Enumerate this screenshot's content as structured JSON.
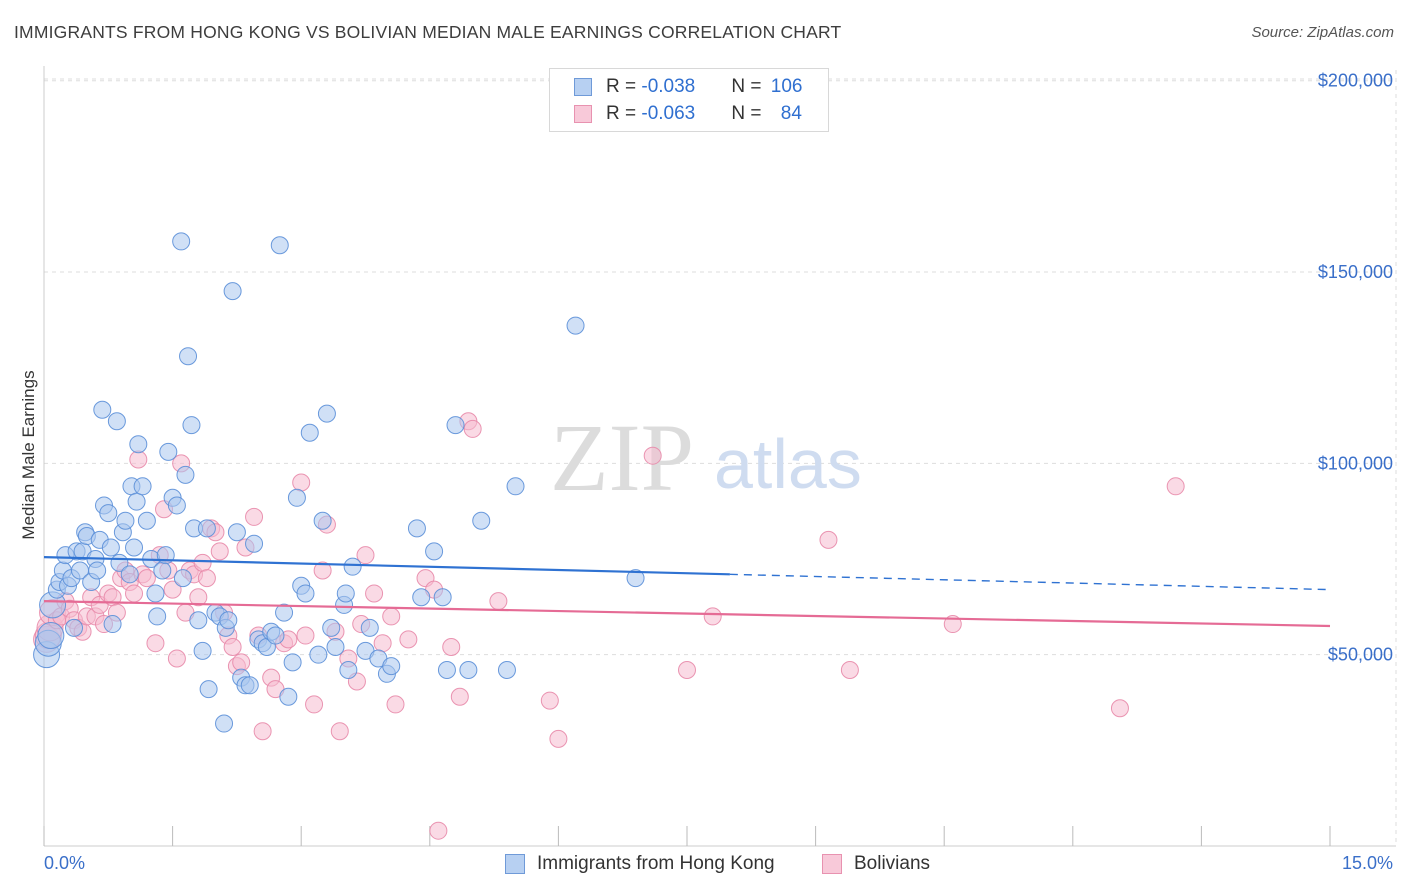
{
  "header": {
    "title": "IMMIGRANTS FROM HONG KONG VS BOLIVIAN MEDIAN MALE EARNINGS CORRELATION CHART",
    "source": "Source: ZipAtlas.com"
  },
  "watermark": {
    "zip": "ZIP",
    "atlas": "atlas"
  },
  "legend": {
    "rows": [
      {
        "r_label": "R = ",
        "r_value": "-0.038",
        "n_label": "N = ",
        "n_value": "106"
      },
      {
        "r_label": "R = ",
        "r_value": "-0.063",
        "n_label": "N = ",
        "n_value": "84"
      }
    ]
  },
  "bottom_legend": {
    "series1": "Immigrants from Hong Kong",
    "series2": "Bolivians"
  },
  "colors": {
    "blue_fill": "#a9c6ee",
    "blue_stroke": "#5b8fd8",
    "blue_line": "#2f72d2",
    "pink_fill": "#f6bcd0",
    "pink_stroke": "#e88aaa",
    "pink_line": "#e56b95",
    "grid": "#dddddd",
    "tick_label": "#3a6fc9"
  },
  "chart_data": {
    "type": "scatter",
    "title": "IMMIGRANTS FROM HONG KONG VS BOLIVIAN MEDIAN MALE EARNINGS CORRELATION CHART",
    "xlabel": "",
    "ylabel": "Median Male Earnings",
    "xlim": [
      0,
      15
    ],
    "ylim": [
      0,
      210000
    ],
    "x_tick_labels": [
      "0.0%",
      "15.0%"
    ],
    "y_ticks": [
      50000,
      100000,
      150000,
      200000
    ],
    "y_tick_labels": [
      "$50,000",
      "$100,000",
      "$150,000",
      "$200,000"
    ],
    "grid": true,
    "legend_position": "top-center",
    "series": [
      {
        "name": "Immigrants from Hong Kong",
        "R": -0.038,
        "N": 106,
        "trend": {
          "x_start": 0,
          "y_start": 75500,
          "x_solid_end": 8.0,
          "y_solid_end": 71000,
          "x_end": 15,
          "y_end": 67000
        },
        "points": [
          [
            0.03,
            50000
          ],
          [
            0.05,
            53000
          ],
          [
            0.08,
            55000
          ],
          [
            0.1,
            63000
          ],
          [
            0.15,
            67000
          ],
          [
            0.18,
            69000
          ],
          [
            0.22,
            72000
          ],
          [
            0.25,
            76000
          ],
          [
            0.28,
            68000
          ],
          [
            0.32,
            70000
          ],
          [
            0.35,
            57000
          ],
          [
            0.38,
            77000
          ],
          [
            0.42,
            72000
          ],
          [
            0.45,
            77000
          ],
          [
            0.48,
            82000
          ],
          [
            0.5,
            81000
          ],
          [
            0.55,
            69000
          ],
          [
            0.6,
            75000
          ],
          [
            0.62,
            72000
          ],
          [
            0.65,
            80000
          ],
          [
            0.68,
            114000
          ],
          [
            0.7,
            89000
          ],
          [
            0.75,
            87000
          ],
          [
            0.78,
            78000
          ],
          [
            0.8,
            58000
          ],
          [
            0.85,
            111000
          ],
          [
            0.88,
            74000
          ],
          [
            0.92,
            82000
          ],
          [
            0.95,
            85000
          ],
          [
            1.0,
            71000
          ],
          [
            1.02,
            94000
          ],
          [
            1.05,
            78000
          ],
          [
            1.08,
            90000
          ],
          [
            1.1,
            105000
          ],
          [
            1.15,
            94000
          ],
          [
            1.2,
            85000
          ],
          [
            1.25,
            75000
          ],
          [
            1.3,
            66000
          ],
          [
            1.32,
            60000
          ],
          [
            1.38,
            72000
          ],
          [
            1.42,
            76000
          ],
          [
            1.45,
            103000
          ],
          [
            1.5,
            91000
          ],
          [
            1.55,
            89000
          ],
          [
            1.6,
            158000
          ],
          [
            1.62,
            70000
          ],
          [
            1.65,
            97000
          ],
          [
            1.68,
            128000
          ],
          [
            1.72,
            110000
          ],
          [
            1.75,
            83000
          ],
          [
            1.8,
            59000
          ],
          [
            1.85,
            51000
          ],
          [
            1.9,
            83000
          ],
          [
            1.92,
            41000
          ],
          [
            2.0,
            61000
          ],
          [
            2.05,
            60000
          ],
          [
            2.1,
            32000
          ],
          [
            2.12,
            57000
          ],
          [
            2.15,
            59000
          ],
          [
            2.2,
            145000
          ],
          [
            2.25,
            82000
          ],
          [
            2.3,
            44000
          ],
          [
            2.35,
            42000
          ],
          [
            2.4,
            42000
          ],
          [
            2.45,
            79000
          ],
          [
            2.5,
            54000
          ],
          [
            2.55,
            53000
          ],
          [
            2.6,
            52000
          ],
          [
            2.65,
            56000
          ],
          [
            2.7,
            55000
          ],
          [
            2.75,
            157000
          ],
          [
            2.8,
            61000
          ],
          [
            2.85,
            39000
          ],
          [
            2.9,
            48000
          ],
          [
            2.95,
            91000
          ],
          [
            3.0,
            68000
          ],
          [
            3.05,
            66000
          ],
          [
            3.1,
            108000
          ],
          [
            3.2,
            50000
          ],
          [
            3.25,
            85000
          ],
          [
            3.3,
            113000
          ],
          [
            3.35,
            57000
          ],
          [
            3.4,
            52000
          ],
          [
            3.5,
            63000
          ],
          [
            3.52,
            66000
          ],
          [
            3.55,
            46000
          ],
          [
            3.6,
            73000
          ],
          [
            3.75,
            51000
          ],
          [
            3.8,
            57000
          ],
          [
            3.9,
            49000
          ],
          [
            4.0,
            45000
          ],
          [
            4.05,
            47000
          ],
          [
            4.35,
            83000
          ],
          [
            4.4,
            65000
          ],
          [
            4.55,
            77000
          ],
          [
            4.65,
            65000
          ],
          [
            4.7,
            46000
          ],
          [
            4.8,
            110000
          ],
          [
            4.95,
            46000
          ],
          [
            5.1,
            85000
          ],
          [
            5.4,
            46000
          ],
          [
            5.5,
            94000
          ],
          [
            6.2,
            136000
          ],
          [
            6.9,
            70000
          ]
        ]
      },
      {
        "name": "Bolivians",
        "R": -0.063,
        "N": 84,
        "trend": {
          "x_start": 0,
          "y_start": 64000,
          "x_end": 15,
          "y_end": 57500
        },
        "points": [
          [
            0.03,
            54000
          ],
          [
            0.05,
            55000
          ],
          [
            0.07,
            57000
          ],
          [
            0.1,
            61000
          ],
          [
            0.15,
            59000
          ],
          [
            0.2,
            60000
          ],
          [
            0.25,
            64000
          ],
          [
            0.3,
            62000
          ],
          [
            0.35,
            59000
          ],
          [
            0.4,
            57000
          ],
          [
            0.45,
            56000
          ],
          [
            0.5,
            60000
          ],
          [
            0.55,
            65000
          ],
          [
            0.6,
            60000
          ],
          [
            0.65,
            63000
          ],
          [
            0.7,
            58000
          ],
          [
            0.75,
            66000
          ],
          [
            0.8,
            65000
          ],
          [
            0.85,
            61000
          ],
          [
            0.9,
            70000
          ],
          [
            0.95,
            72000
          ],
          [
            1.0,
            69000
          ],
          [
            1.05,
            66000
          ],
          [
            1.1,
            101000
          ],
          [
            1.15,
            71000
          ],
          [
            1.2,
            70000
          ],
          [
            1.3,
            53000
          ],
          [
            1.35,
            76000
          ],
          [
            1.4,
            88000
          ],
          [
            1.45,
            72000
          ],
          [
            1.5,
            67000
          ],
          [
            1.55,
            49000
          ],
          [
            1.6,
            100000
          ],
          [
            1.65,
            61000
          ],
          [
            1.7,
            72000
          ],
          [
            1.75,
            71000
          ],
          [
            1.8,
            65000
          ],
          [
            1.85,
            74000
          ],
          [
            1.9,
            70000
          ],
          [
            1.95,
            83000
          ],
          [
            2.0,
            82000
          ],
          [
            2.05,
            77000
          ],
          [
            2.1,
            61000
          ],
          [
            2.15,
            55000
          ],
          [
            2.2,
            52000
          ],
          [
            2.25,
            47000
          ],
          [
            2.3,
            48000
          ],
          [
            2.35,
            78000
          ],
          [
            2.45,
            86000
          ],
          [
            2.5,
            55000
          ],
          [
            2.55,
            30000
          ],
          [
            2.65,
            44000
          ],
          [
            2.7,
            41000
          ],
          [
            2.8,
            53000
          ],
          [
            2.85,
            54000
          ],
          [
            3.0,
            95000
          ],
          [
            3.05,
            55000
          ],
          [
            3.15,
            37000
          ],
          [
            3.25,
            72000
          ],
          [
            3.3,
            84000
          ],
          [
            3.4,
            56000
          ],
          [
            3.45,
            30000
          ],
          [
            3.55,
            49000
          ],
          [
            3.65,
            43000
          ],
          [
            3.7,
            58000
          ],
          [
            3.75,
            76000
          ],
          [
            3.85,
            66000
          ],
          [
            3.95,
            53000
          ],
          [
            4.05,
            60000
          ],
          [
            4.1,
            37000
          ],
          [
            4.25,
            54000
          ],
          [
            4.45,
            70000
          ],
          [
            4.55,
            67000
          ],
          [
            4.6,
            4000
          ],
          [
            4.75,
            52000
          ],
          [
            4.85,
            39000
          ],
          [
            4.95,
            111000
          ],
          [
            5.0,
            109000
          ],
          [
            5.3,
            64000
          ],
          [
            5.9,
            38000
          ],
          [
            6.0,
            28000
          ],
          [
            7.1,
            102000
          ],
          [
            7.5,
            46000
          ],
          [
            7.8,
            60000
          ],
          [
            9.15,
            80000
          ],
          [
            9.4,
            46000
          ],
          [
            10.6,
            58000
          ],
          [
            12.55,
            36000
          ],
          [
            13.2,
            94000
          ]
        ]
      }
    ]
  }
}
